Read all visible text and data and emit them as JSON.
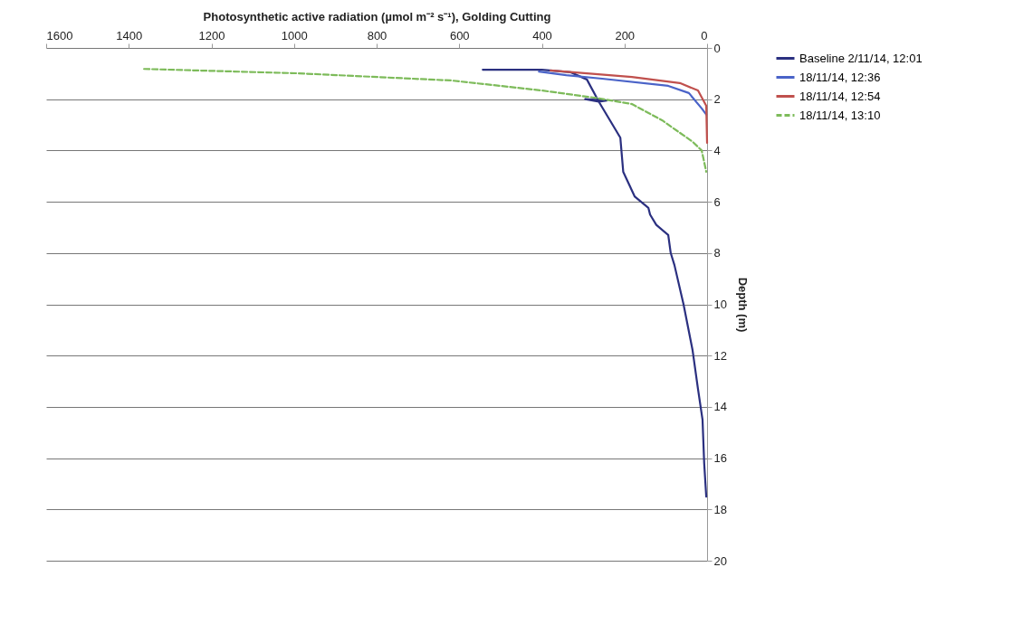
{
  "chart_data": {
    "type": "line",
    "xlabel": "Photosynthetic active radiation (µmol m⁻² s⁻¹), Golding Cutting",
    "ylabel": "Depth (m)",
    "xlim": [
      1600,
      0
    ],
    "xticks": [
      0,
      200,
      400,
      600,
      800,
      1000,
      1200,
      1400,
      1600
    ],
    "ylim": [
      20,
      0
    ],
    "yticks": [
      0,
      2,
      4,
      6,
      8,
      10,
      12,
      14,
      16,
      18,
      20
    ],
    "grid": "y",
    "legend": "right",
    "marker": "none",
    "series": [
      {
        "name": "Baseline 2/11/14, 12:01",
        "color": "#2b3080",
        "line_style": "solid",
        "x": [
          543,
          400,
          330,
          291,
          262,
          295,
          243,
          262,
          210,
          203,
          175,
          142,
          138,
          123,
          94,
          88,
          79,
          57,
          35,
          22,
          11,
          7,
          2
        ],
        "values": [
          0.85,
          0.85,
          0.95,
          1.23,
          2.1,
          2.0,
          2.05,
          2.1,
          3.5,
          4.83,
          5.8,
          6.24,
          6.5,
          6.9,
          7.3,
          8.0,
          8.47,
          10.0,
          11.8,
          13.3,
          14.5,
          16.2,
          17.5
        ]
      },
      {
        "name": "18/11/14, 12:36",
        "color": "#4a63c8",
        "line_style": "solid",
        "x": [
          407,
          341,
          254,
          94,
          44,
          13,
          2
        ],
        "values": [
          0.92,
          1.06,
          1.2,
          1.48,
          1.76,
          2.36,
          2.6
        ]
      },
      {
        "name": "18/11/14, 12:54",
        "color": "#c0504d",
        "line_style": "solid",
        "x": [
          379,
          182,
          66,
          22,
          2,
          0
        ],
        "values": [
          0.88,
          1.13,
          1.37,
          1.66,
          2.26,
          3.7
        ]
      },
      {
        "name": "18/11/14, 13:10",
        "color": "#7dbb5a",
        "line_style": "dashed",
        "x": [
          1363,
          991,
          619,
          400,
          269,
          182,
          109,
          35,
          13,
          2
        ],
        "values": [
          0.82,
          0.99,
          1.27,
          1.66,
          1.95,
          2.19,
          2.82,
          3.66,
          4.0,
          4.83
        ]
      }
    ]
  }
}
